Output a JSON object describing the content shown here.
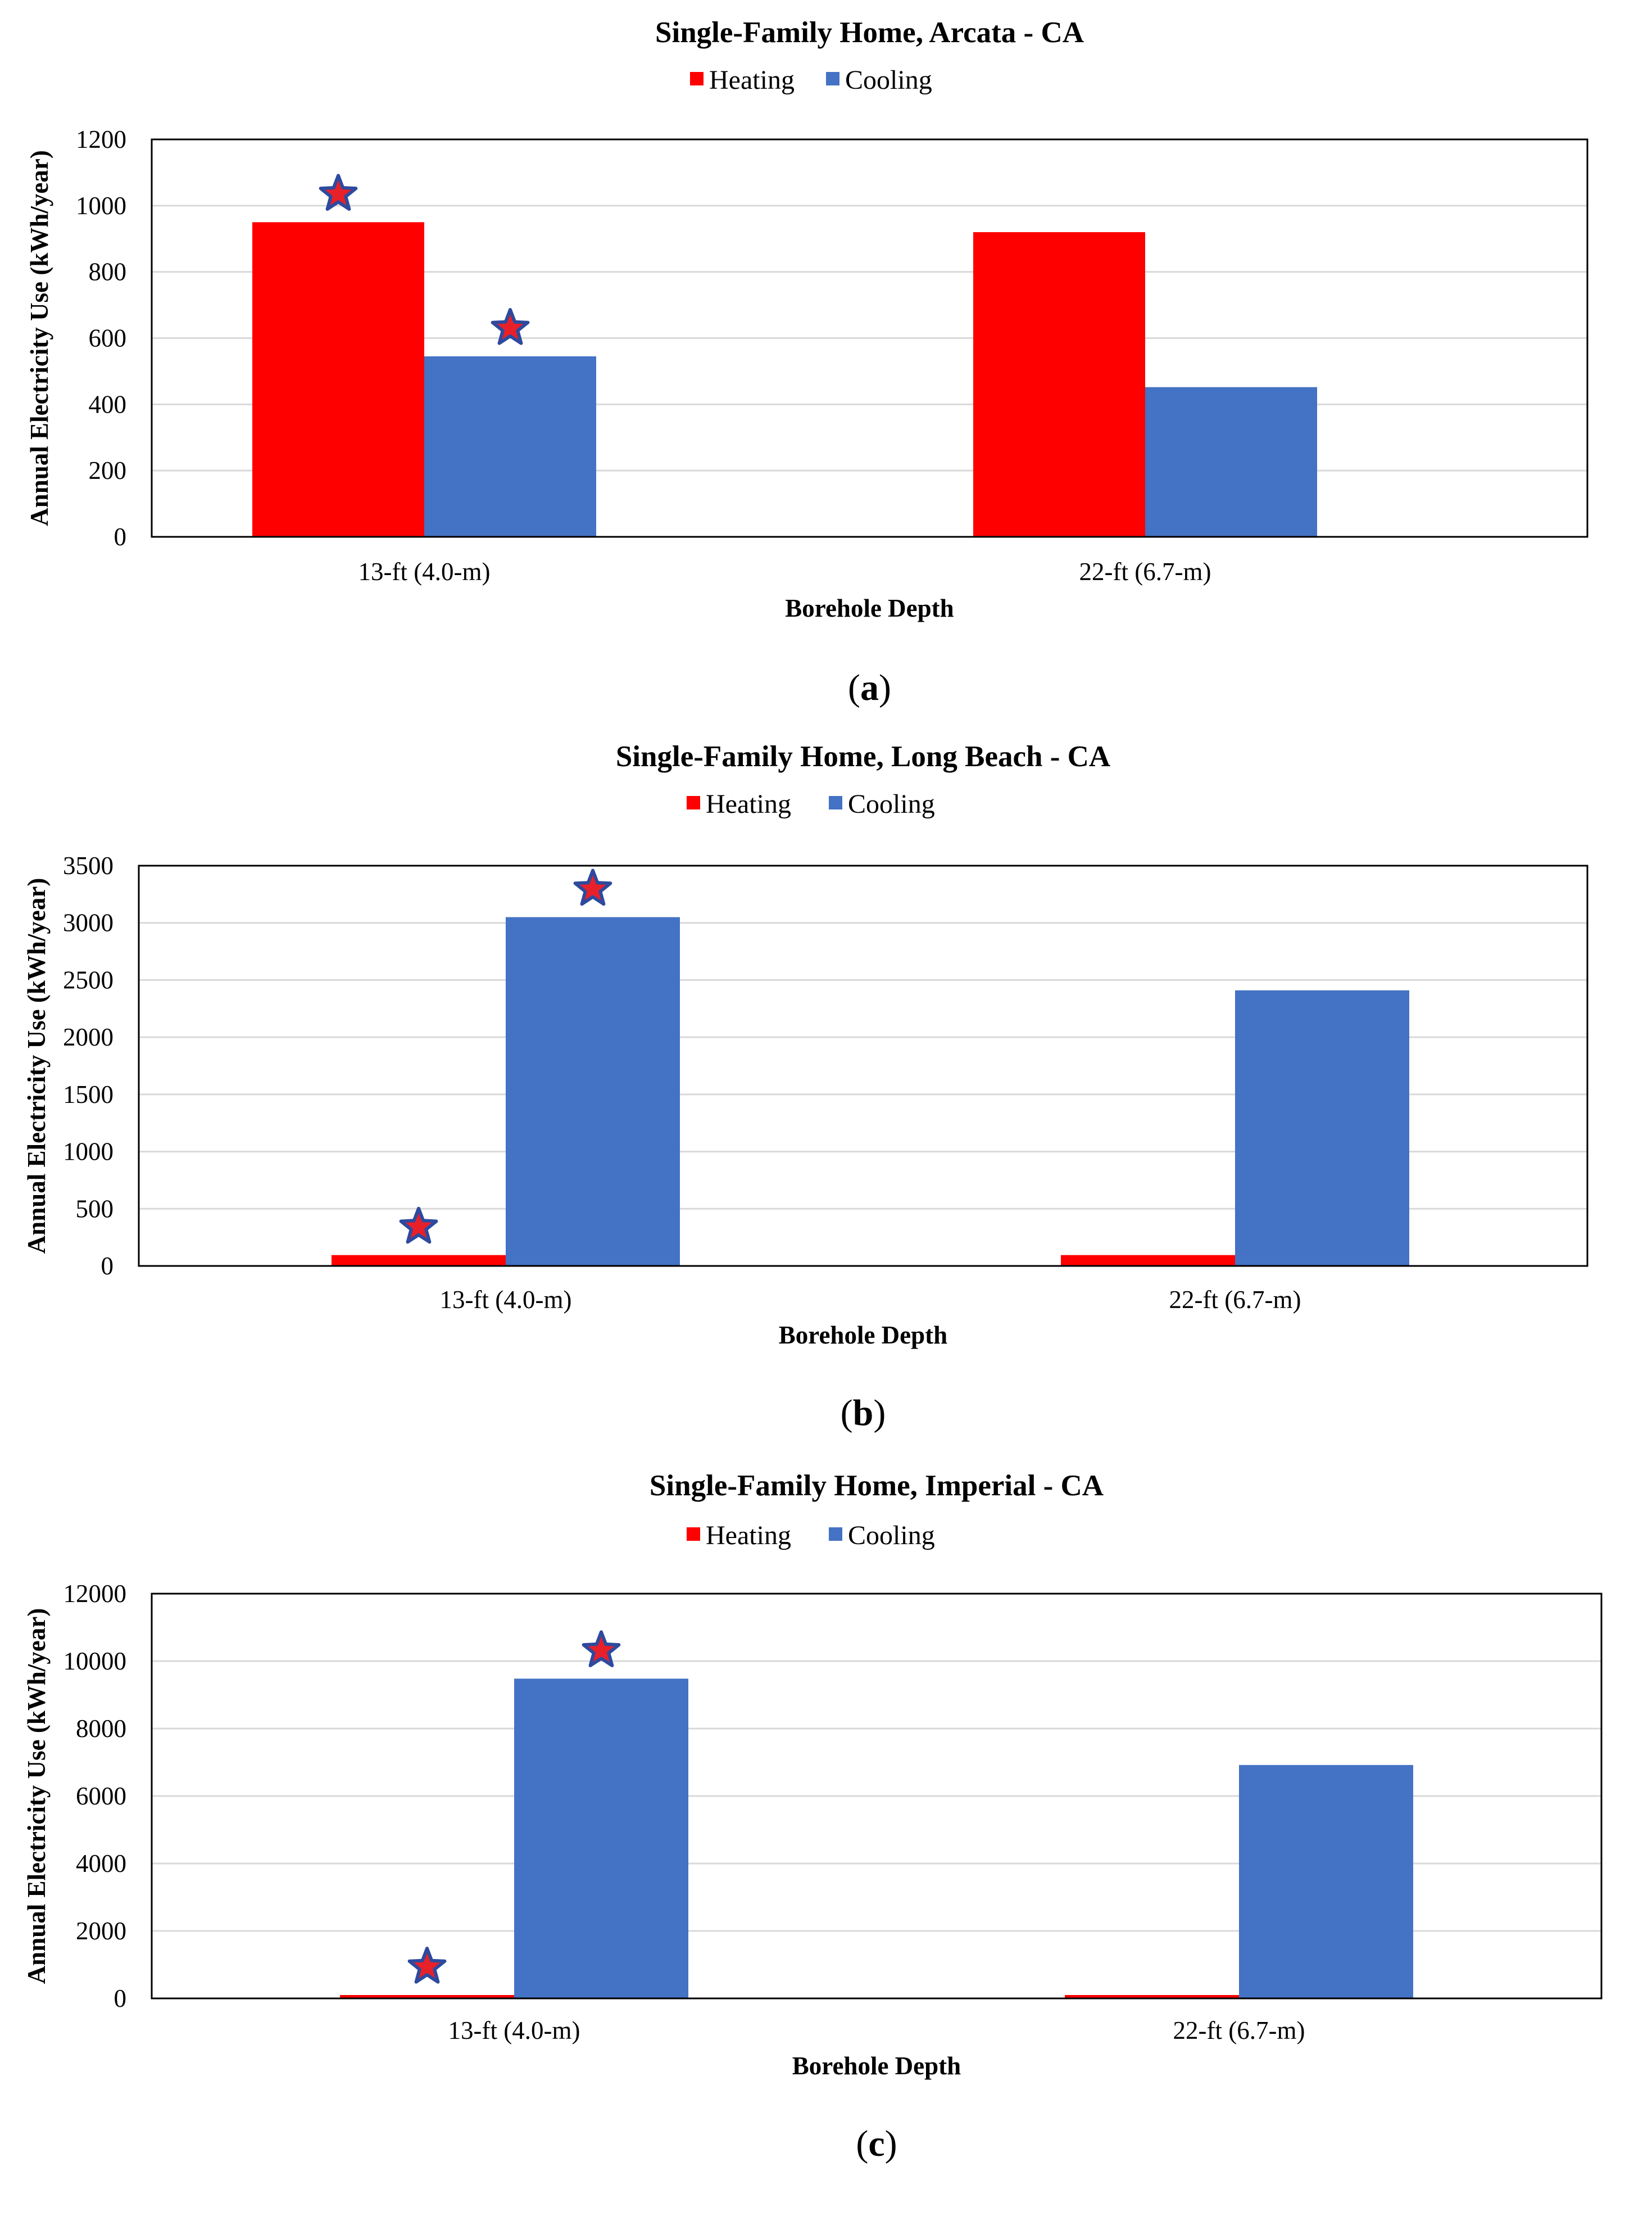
{
  "figure": {
    "panels": [
      {
        "id": "a",
        "caption": "(a)"
      },
      {
        "id": "b",
        "caption": "(b)"
      },
      {
        "id": "c",
        "caption": "(c)"
      }
    ]
  },
  "colors": {
    "heating": "#ff0000",
    "cooling": "#4472c4",
    "star_fill": "#e8202a",
    "star_outline": "#2e4a9e",
    "gridline": "#d9d9d9",
    "axis": "#000000"
  },
  "chart_data": [
    {
      "type": "bar",
      "title": "Single-Family Home, Arcata  - CA",
      "xlabel": "Borehole Depth",
      "ylabel": "Annual Electricity Use (kWh/year)",
      "categories": [
        "13-ft (4.0-m)",
        "22-ft (6.7-m)"
      ],
      "series": [
        {
          "name": "Heating",
          "values": [
            950,
            920
          ],
          "starred": [
            true,
            false
          ]
        },
        {
          "name": "Cooling",
          "values": [
            545,
            452
          ],
          "starred": [
            true,
            false
          ]
        }
      ],
      "ylim": [
        0,
        1200
      ],
      "yticks": [
        0,
        200,
        400,
        600,
        800,
        1000,
        1200
      ],
      "ytick_labels": [
        "0",
        "200",
        "400",
        "600",
        "800",
        "1000",
        "1200"
      ],
      "legend": "top-center",
      "grid": true
    },
    {
      "type": "bar",
      "title": "Single-Family Home, Long Beach - CA",
      "xlabel": "Borehole Depth",
      "ylabel": "Annual Electricity Use (kWh/year)",
      "categories": [
        "13-ft (4.0-m)",
        "22-ft (6.7-m)"
      ],
      "series": [
        {
          "name": "Heating",
          "values": [
            95,
            95
          ],
          "starred": [
            true,
            false
          ]
        },
        {
          "name": "Cooling",
          "values": [
            3050,
            2410
          ],
          "starred": [
            true,
            false
          ]
        }
      ],
      "ylim": [
        0,
        3500
      ],
      "yticks": [
        0,
        500,
        1000,
        1500,
        2000,
        2500,
        3000,
        3500
      ],
      "ytick_labels": [
        "0",
        "500",
        "1000",
        "1500",
        "2000",
        "2500",
        "3000",
        "3500"
      ],
      "legend": "top-center",
      "grid": true
    },
    {
      "type": "bar",
      "title": "Single-Family Home, Imperial - CA",
      "xlabel": "Borehole Depth",
      "ylabel": "Annual Electricity Use (kWh/year)",
      "categories": [
        "13-ft (4.0-m)",
        "22-ft (6.7-m)"
      ],
      "series": [
        {
          "name": "Heating",
          "values": [
            100,
            100
          ],
          "starred": [
            true,
            false
          ]
        },
        {
          "name": "Cooling",
          "values": [
            9480,
            6920
          ],
          "starred": [
            true,
            false
          ]
        }
      ],
      "ylim": [
        0,
        12000
      ],
      "yticks": [
        0,
        2000,
        4000,
        6000,
        8000,
        10000,
        12000
      ],
      "ytick_labels": [
        "0",
        "2000",
        "4000",
        "6000",
        "8000",
        "10000",
        "12000"
      ],
      "legend": "top-center",
      "grid": true
    }
  ]
}
